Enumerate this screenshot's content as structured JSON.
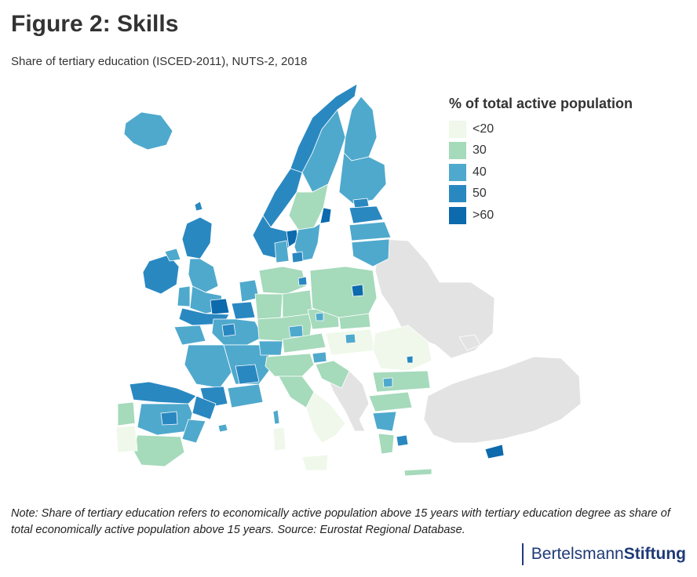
{
  "title": "Figure 2: Skills",
  "subtitle": "Share of tertiary education (ISCED-2011), NUTS-2, 2018",
  "legend": {
    "title": "% of total active population",
    "items": [
      {
        "label": "<20",
        "color": "#eff8ea"
      },
      {
        "label": "30",
        "color": "#a5dabb"
      },
      {
        "label": "40",
        "color": "#4fa9cd"
      },
      {
        "label": "50",
        "color": "#2a88c1"
      },
      {
        "label": ">60",
        "color": "#0c6aad"
      }
    ]
  },
  "no_data_color": "#e3e3e3",
  "note": "Note: Share of tertiary education refers to economically active population above 15 years with tertiary education degree as share of total economically active population above 15 years. Source: Eurostat Regional Database.",
  "brand": {
    "part1": "Bertelsmann",
    "part2": "Stiftung"
  }
}
